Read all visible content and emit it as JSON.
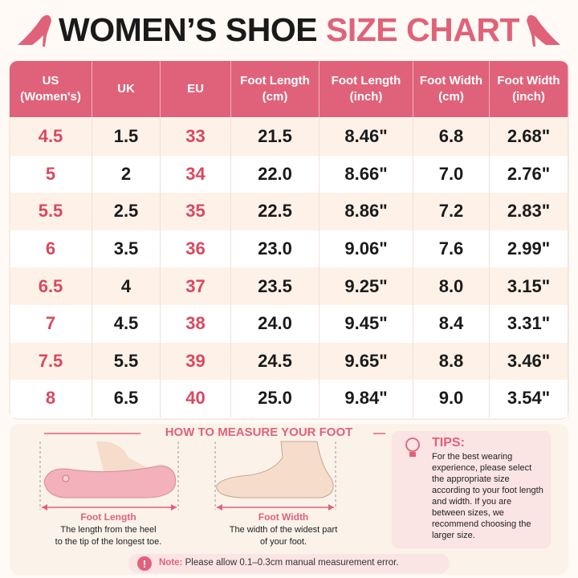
{
  "title": {
    "part1": "WOMEN’S SHOE",
    "part2": "SIZE CHART"
  },
  "table": {
    "header": [
      [
        "US",
        "(Women's)"
      ],
      [
        "UK"
      ],
      [
        "EU"
      ],
      [
        "Foot Length",
        "(cm)"
      ],
      [
        "Foot Length",
        "(inch)"
      ],
      [
        "Foot Width",
        "(cm)"
      ],
      [
        "Foot Width",
        "(inch)"
      ]
    ],
    "rows": [
      [
        "4.5",
        "1.5",
        "33",
        "21.5",
        "8.46\"",
        "6.8",
        "2.68\""
      ],
      [
        "5",
        "2",
        "34",
        "22.0",
        "8.66\"",
        "7.0",
        "2.76\""
      ],
      [
        "5.5",
        "2.5",
        "35",
        "22.5",
        "8.86\"",
        "7.2",
        "2.83\""
      ],
      [
        "6",
        "3.5",
        "36",
        "23.0",
        "9.06\"",
        "7.6",
        "2.99\""
      ],
      [
        "6.5",
        "4",
        "37",
        "23.5",
        "9.25\"",
        "8.0",
        "3.15\""
      ],
      [
        "7",
        "4.5",
        "38",
        "24.0",
        "9.45\"",
        "8.4",
        "3.31\""
      ],
      [
        "7.5",
        "5.5",
        "39",
        "24.5",
        "9.65\"",
        "8.8",
        "3.46\""
      ],
      [
        "8",
        "6.5",
        "40",
        "25.0",
        "9.84\"",
        "9.0",
        "3.54\""
      ]
    ]
  },
  "measure": {
    "title": "HOW TO MEASURE YOUR FOOT",
    "length": {
      "label": "Foot Length",
      "desc": [
        "The length from the heel",
        "to the tip of the longest toe."
      ]
    },
    "width": {
      "label": "Foot Width",
      "desc": [
        "The width of the widest part",
        "of your foot."
      ]
    }
  },
  "tips": {
    "title": "TIPS:",
    "body": "For the best wearing experience, please select the appropriate size according to your foot length and width. If you are between sizes, we recommend choosing the larger size."
  },
  "note": {
    "label": "Note:",
    "text": "Please allow 0.1–0.3cm manual measurement error."
  }
}
